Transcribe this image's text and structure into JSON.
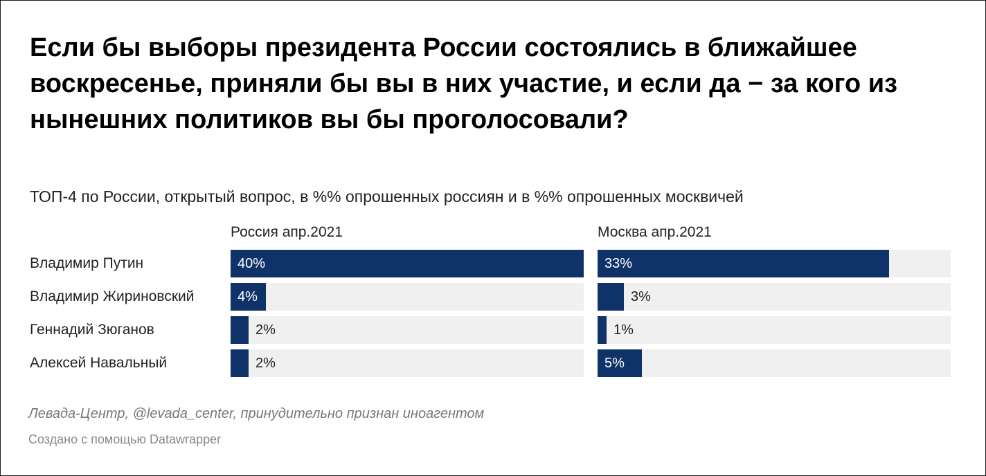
{
  "title": "Если бы выборы президента России состоялись в ближайшее воскресенье, приняли бы вы в них участие, и если да − за кого из нынешних политиков вы бы проголосовали?",
  "subtitle": "ТОП-4 по России, открытый вопрос, в %% опрошенных россиян и в %% опрошенных москвичей",
  "source": "Левада-Центр, @levada_center, принудительно признан иноагентом",
  "credit": "Создано с помощью Datawrapper",
  "colors": {
    "bar": "#0f3368",
    "track": "#f0f0f0"
  },
  "chart_data": {
    "type": "bar",
    "orientation": "horizontal",
    "categories": [
      "Владимир Путин",
      "Владимир Жириновский",
      "Геннадий Зюганов",
      "Алексей Навальный"
    ],
    "xlim": [
      0,
      40
    ],
    "series": [
      {
        "name": "Россия апр.2021",
        "values": [
          40,
          4,
          2,
          2
        ],
        "labels": [
          "40%",
          "4%",
          "2%",
          "2%"
        ]
      },
      {
        "name": "Москва апр.2021",
        "values": [
          33,
          3,
          1,
          5
        ],
        "labels": [
          "33%",
          "3%",
          "1%",
          "5%"
        ]
      }
    ]
  }
}
